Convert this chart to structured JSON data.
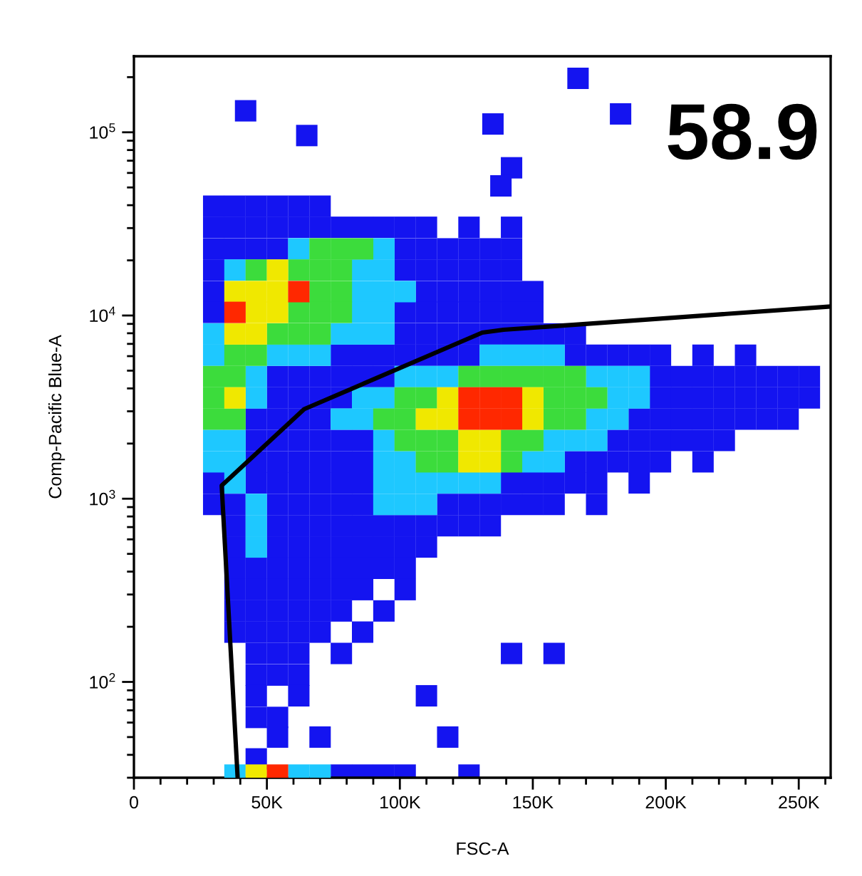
{
  "chart_data": {
    "type": "scatter",
    "xlabel": "FSC-A",
    "ylabel": "Comp-Pacific Blue-A",
    "annotations": [
      "58.9"
    ],
    "log": "y",
    "marker": "square",
    "xlim": [
      0,
      262000
    ],
    "ylim": [
      30,
      260000
    ],
    "xticks": [
      0,
      {
        "value": 50000,
        "label": "50K"
      },
      {
        "value": 100000,
        "label": "100K"
      },
      {
        "value": 150000,
        "label": "150K"
      },
      {
        "value": 200000,
        "label": "200K"
      },
      {
        "value": 250000,
        "label": "250K"
      }
    ],
    "yticks": [
      {
        "value": 100,
        "label": "10$^{2}$"
      },
      {
        "value": 1000,
        "label": "10$^{3}$"
      },
      {
        "value": 10000,
        "label": "10$^{4}$"
      },
      {
        "value": 100000,
        "label": "10$^{5}$"
      }
    ],
    "series": [
      {
        "color": "#1414f0",
        "x": [
          30000,
          38000,
          46000,
          54000,
          62000,
          70000,
          30000,
          38000,
          46000,
          54000,
          62000,
          70000,
          78000,
          86000,
          94000,
          102000,
          110000,
          126000,
          142000,
          30000,
          38000,
          46000,
          54000,
          102000,
          110000,
          118000,
          126000,
          134000,
          142000,
          30000,
          102000,
          110000,
          118000,
          126000,
          134000,
          142000,
          30000,
          110000,
          118000,
          126000,
          134000,
          142000,
          150000,
          30000,
          102000,
          110000,
          118000,
          126000,
          134000,
          142000,
          150000,
          102000,
          110000,
          118000,
          126000,
          134000,
          142000,
          150000,
          158000,
          166000,
          78000,
          86000,
          94000,
          102000,
          110000,
          118000,
          126000,
          166000,
          174000,
          182000,
          190000,
          198000,
          214000,
          230000,
          54000,
          62000,
          70000,
          78000,
          86000,
          94000,
          198000,
          206000,
          214000,
          222000,
          230000,
          238000,
          246000,
          254000,
          54000,
          62000,
          70000,
          78000,
          198000,
          206000,
          214000,
          222000,
          230000,
          238000,
          246000,
          254000,
          46000,
          54000,
          62000,
          70000,
          190000,
          198000,
          206000,
          214000,
          222000,
          230000,
          238000,
          246000,
          46000,
          54000,
          62000,
          70000,
          78000,
          86000,
          182000,
          190000,
          198000,
          206000,
          214000,
          222000,
          46000,
          54000,
          62000,
          70000,
          78000,
          86000,
          166000,
          174000,
          182000,
          190000,
          198000,
          214000,
          30000,
          46000,
          54000,
          62000,
          70000,
          78000,
          86000,
          142000,
          150000,
          158000,
          166000,
          174000,
          190000,
          30000,
          38000,
          54000,
          62000,
          70000,
          78000,
          86000,
          118000,
          126000,
          134000,
          142000,
          150000,
          158000,
          174000,
          38000,
          54000,
          62000,
          70000,
          78000,
          86000,
          94000,
          102000,
          110000,
          118000,
          126000,
          134000,
          38000,
          54000,
          62000,
          70000,
          78000,
          86000,
          94000,
          102000,
          110000,
          38000,
          46000,
          54000,
          62000,
          70000,
          78000,
          86000,
          94000,
          102000,
          38000,
          46000,
          54000,
          62000,
          70000,
          78000,
          86000,
          102000,
          38000,
          46000,
          54000,
          62000,
          70000,
          78000,
          94000,
          38000,
          46000,
          54000,
          62000,
          70000,
          86000,
          46000,
          54000,
          62000,
          78000,
          142000,
          158000,
          46000,
          54000,
          62000,
          46000,
          62000,
          110000,
          46000,
          54000,
          54000,
          70000,
          118000,
          46000,
          78000,
          86000,
          94000,
          102000,
          126000,
          42000,
          65000,
          167000,
          183000,
          135000,
          142000,
          138000
        ],
        "values": [
          39500,
          39500,
          39500,
          39500,
          39500,
          39500,
          30300,
          30300,
          30300,
          30300,
          30300,
          30300,
          30300,
          30300,
          30300,
          30300,
          30300,
          30300,
          30300,
          23100,
          23100,
          23100,
          23100,
          23100,
          23100,
          23100,
          23100,
          23100,
          23100,
          17700,
          17700,
          17700,
          17700,
          17700,
          17700,
          17700,
          13500,
          13500,
          13500,
          13500,
          13500,
          13500,
          13500,
          10400,
          10400,
          10400,
          10400,
          10400,
          10400,
          10400,
          10400,
          7930,
          7930,
          7930,
          7930,
          7930,
          7930,
          7930,
          7930,
          7930,
          6070,
          6070,
          6070,
          6070,
          6070,
          6070,
          6070,
          6070,
          6070,
          6070,
          6070,
          6070,
          6070,
          6070,
          4640,
          4640,
          4640,
          4640,
          4640,
          4640,
          4640,
          4640,
          4640,
          4640,
          4640,
          4640,
          4640,
          4640,
          3550,
          3550,
          3550,
          3550,
          3550,
          3550,
          3550,
          3550,
          3550,
          3550,
          3550,
          3550,
          2720,
          2720,
          2720,
          2720,
          2720,
          2720,
          2720,
          2720,
          2720,
          2720,
          2720,
          2720,
          2080,
          2080,
          2080,
          2080,
          2080,
          2080,
          2080,
          2080,
          2080,
          2080,
          2080,
          2080,
          1590,
          1590,
          1590,
          1590,
          1590,
          1590,
          1590,
          1590,
          1590,
          1590,
          1590,
          1590,
          1220,
          1220,
          1220,
          1220,
          1220,
          1220,
          1220,
          1220,
          1220,
          1220,
          1220,
          1220,
          1220,
          931,
          931,
          931,
          931,
          931,
          931,
          931,
          931,
          931,
          931,
          931,
          931,
          931,
          931,
          712,
          712,
          712,
          712,
          712,
          712,
          712,
          712,
          712,
          712,
          712,
          712,
          545,
          545,
          545,
          545,
          545,
          545,
          545,
          545,
          545,
          417,
          417,
          417,
          417,
          417,
          417,
          417,
          417,
          417,
          319,
          319,
          319,
          319,
          319,
          319,
          319,
          319,
          244,
          244,
          244,
          244,
          244,
          244,
          244,
          187,
          187,
          187,
          187,
          187,
          187,
          143,
          143,
          143,
          143,
          143,
          143,
          109,
          109,
          109,
          84,
          84,
          84,
          64,
          64,
          50,
          50,
          50,
          38,
          31,
          31,
          31,
          31,
          31,
          131000,
          96000,
          197000,
          126000,
          111000,
          64000,
          51000
        ]
      },
      {
        "color": "#1ec8ff",
        "x": [
          62000,
          94000,
          38000,
          86000,
          94000,
          86000,
          94000,
          102000,
          86000,
          94000,
          30000,
          78000,
          86000,
          94000,
          30000,
          54000,
          62000,
          70000,
          134000,
          142000,
          150000,
          158000,
          46000,
          102000,
          110000,
          118000,
          174000,
          182000,
          190000,
          46000,
          86000,
          94000,
          182000,
          190000,
          78000,
          86000,
          174000,
          182000,
          30000,
          38000,
          94000,
          158000,
          166000,
          174000,
          30000,
          38000,
          94000,
          102000,
          150000,
          158000,
          38000,
          94000,
          102000,
          110000,
          118000,
          126000,
          134000,
          46000,
          94000,
          102000,
          110000,
          46000,
          46000,
          38000,
          62000,
          70000
        ],
        "values": [
          23100,
          23100,
          17700,
          17700,
          17700,
          13500,
          13500,
          13500,
          10400,
          10400,
          7930,
          7930,
          7930,
          7930,
          6070,
          6070,
          6070,
          6070,
          6070,
          6070,
          6070,
          6070,
          4640,
          4640,
          4640,
          4640,
          4640,
          4640,
          4640,
          3550,
          3550,
          3550,
          3550,
          3550,
          2720,
          2720,
          2720,
          2720,
          2080,
          2080,
          2080,
          2080,
          2080,
          2080,
          1590,
          1590,
          1590,
          1590,
          1590,
          1590,
          1220,
          1220,
          1220,
          1220,
          1220,
          1220,
          1220,
          931,
          931,
          931,
          931,
          712,
          545,
          31,
          31,
          31
        ]
      },
      {
        "color": "#3cdc3c",
        "x": [
          70000,
          78000,
          86000,
          46000,
          62000,
          70000,
          78000,
          70000,
          78000,
          62000,
          70000,
          78000,
          54000,
          62000,
          70000,
          38000,
          46000,
          30000,
          38000,
          126000,
          134000,
          142000,
          150000,
          158000,
          166000,
          30000,
          102000,
          110000,
          158000,
          166000,
          174000,
          30000,
          38000,
          94000,
          102000,
          158000,
          166000,
          102000,
          110000,
          118000,
          142000,
          150000,
          110000,
          118000,
          142000
        ],
        "values": [
          23100,
          23100,
          23100,
          17700,
          17700,
          17700,
          17700,
          13500,
          13500,
          10400,
          10400,
          10400,
          7930,
          7930,
          7930,
          6070,
          6070,
          4640,
          4640,
          4640,
          4640,
          4640,
          4640,
          4640,
          4640,
          3550,
          3550,
          3550,
          3550,
          3550,
          3550,
          2720,
          2720,
          2720,
          2720,
          2720,
          2720,
          2080,
          2080,
          2080,
          2080,
          2080,
          1590,
          1590,
          1590
        ]
      },
      {
        "color": "#f0e800",
        "x": [
          54000,
          38000,
          46000,
          54000,
          46000,
          54000,
          38000,
          46000,
          38000,
          118000,
          150000,
          110000,
          118000,
          150000,
          126000,
          134000,
          126000,
          134000,
          46000
        ],
        "values": [
          17700,
          13500,
          13500,
          13500,
          10400,
          10400,
          7930,
          7930,
          3550,
          3550,
          3550,
          2720,
          2720,
          2720,
          2080,
          2080,
          1590,
          1590,
          31
        ]
      },
      {
        "color": "#ff2800",
        "x": [
          62000,
          38000,
          126000,
          134000,
          142000,
          126000,
          134000,
          142000,
          54000
        ],
        "values": [
          13500,
          10400,
          3550,
          3550,
          3550,
          2720,
          2720,
          2720,
          31
        ]
      },
      {
        "type": "line",
        "marker": "none",
        "color": "#000000",
        "x": [
          39000,
          33000,
          64000,
          131000,
          139000,
          262000
        ],
        "values": [
          30,
          1180,
          3080,
          8070,
          8360,
          11200
        ]
      }
    ]
  }
}
